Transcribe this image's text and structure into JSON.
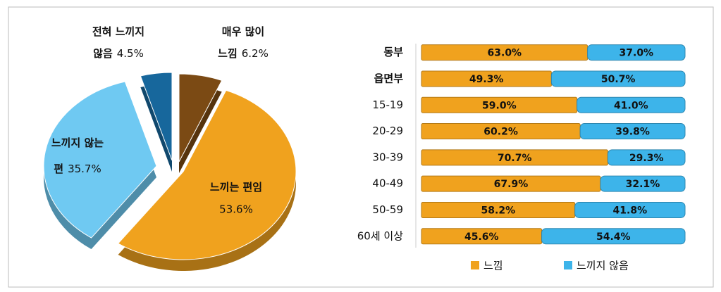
{
  "chart_data": [
    {
      "type": "pie",
      "categories": [
        [
          "매우 많이",
          "느낌"
        ],
        [
          "느끼는 편임"
        ],
        [
          "느끼지 않는",
          "편"
        ],
        [
          "전혀 느끼지",
          "않음"
        ]
      ],
      "values": [
        6.2,
        53.6,
        35.7,
        4.5
      ],
      "value_labels": [
        "6.2%",
        "53.6%",
        "35.7%",
        "4.5%"
      ],
      "colors": [
        "#7b4a14",
        "#f0a21e",
        "#6fc9f2",
        "#17679c"
      ]
    },
    {
      "type": "bar",
      "orientation": "horizontal",
      "stacked": true,
      "categories": [
        "동부",
        "읍면부",
        "15-19",
        "20-29",
        "30-39",
        "40-49",
        "50-59",
        "60세 이상"
      ],
      "series": [
        {
          "name": "느낌",
          "color": "#f0a21e",
          "values": [
            63.0,
            49.3,
            59.0,
            60.2,
            70.7,
            67.9,
            58.2,
            45.6
          ],
          "value_labels": [
            "63.0%",
            "49.3%",
            "59.0%",
            "60.2%",
            "70.7%",
            "67.9%",
            "58.2%",
            "45.6%"
          ]
        },
        {
          "name": "느끼지 않음",
          "color": "#3db4ea",
          "values": [
            37.0,
            50.7,
            41.0,
            39.8,
            29.3,
            32.1,
            41.8,
            54.4
          ],
          "value_labels": [
            "37.0%",
            "50.7%",
            "41.0%",
            "39.8%",
            "29.3%",
            "32.1%",
            "41.8%",
            "54.4%"
          ]
        }
      ],
      "xlim": [
        0,
        100
      ],
      "legend": "bottom"
    }
  ]
}
